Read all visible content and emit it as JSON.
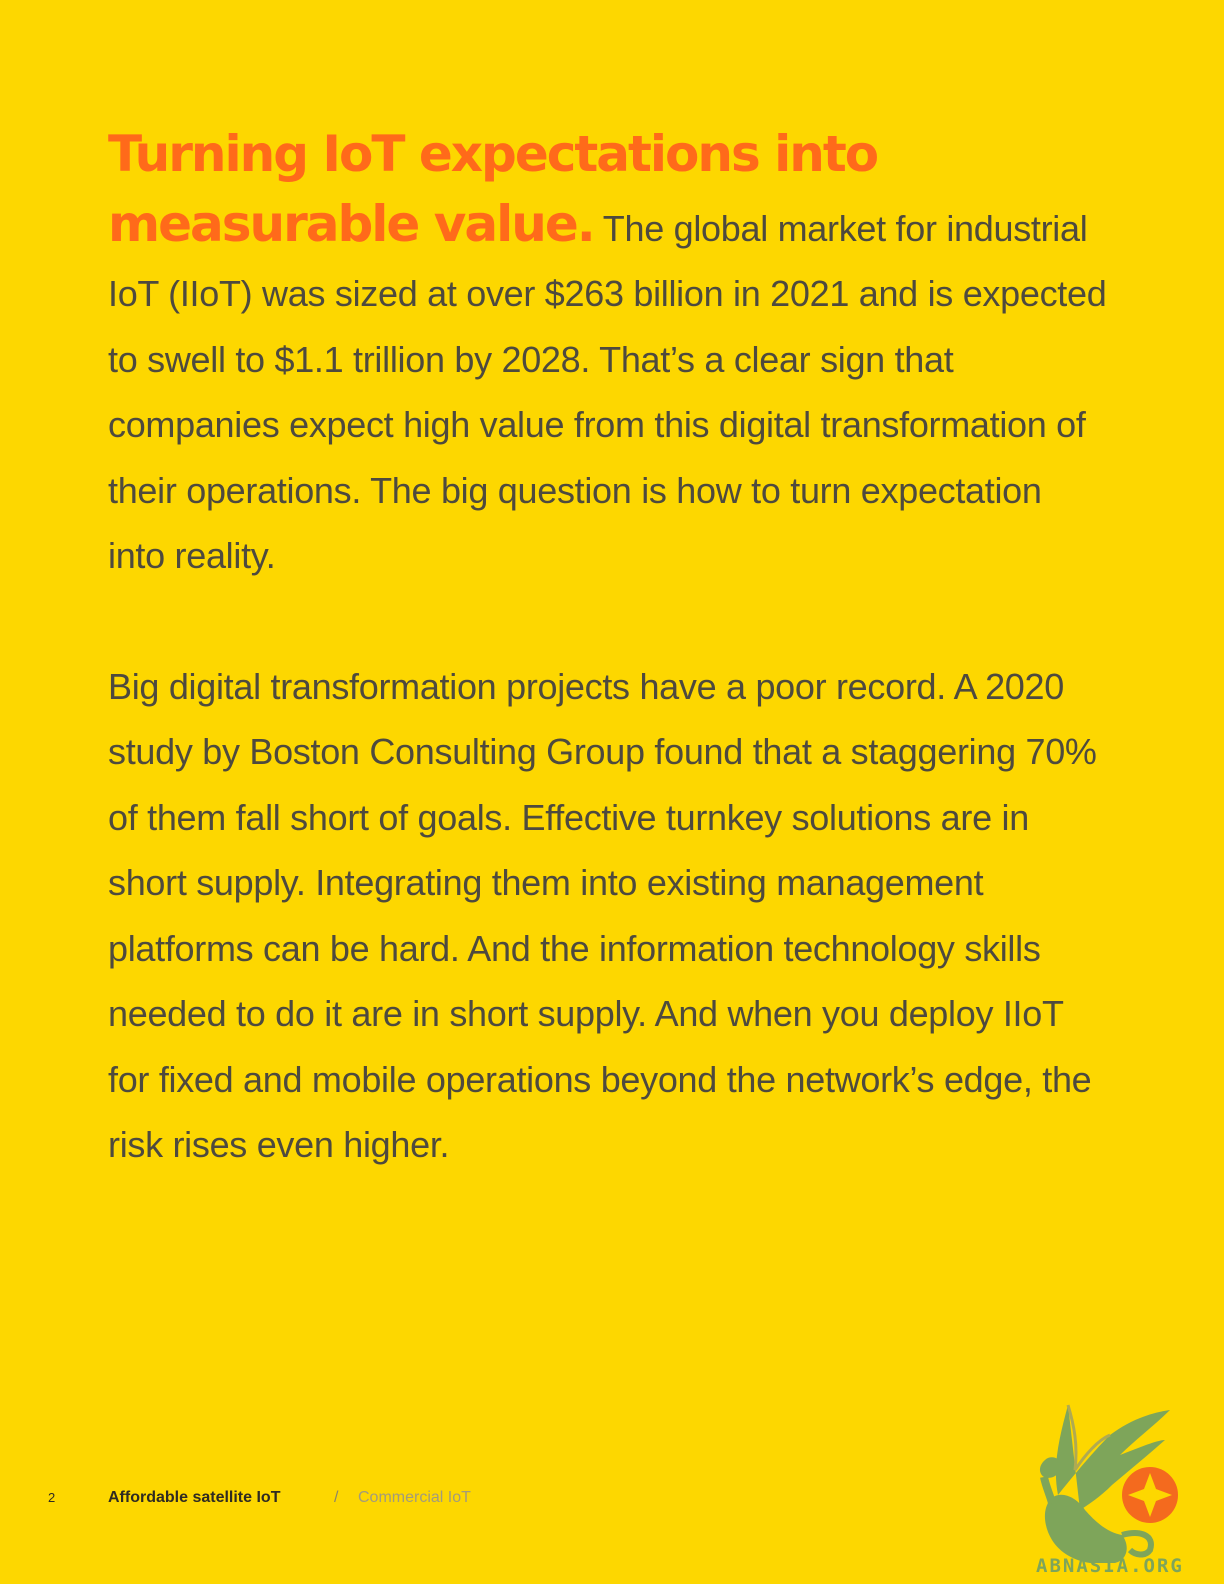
{
  "article": {
    "lead": "Turning IoT expectations into measurable value.",
    "para1_rest": "The global market for industrial IoT (IIoT) was sized at over $263 billion in 2021 and is expected to swell to $1.1 trillion by 2028. That’s a clear sign that companies expect high value from this digital transformation of their operations. The big question is how to turn expectation into reality.",
    "para2": "Big digital transformation projects have a poor record. A 2020 study by Boston Consulting Group found that a staggering 70% of them fall short of goals. Effective turnkey solutions are in short supply. Integrating them into existing management platforms can be hard. And the information technology skills needed to do it are in short supply. And when you deploy IIoT for fixed and mobile operations beyond the network’s edge, the risk rises even higher."
  },
  "footer": {
    "page_number": "2",
    "doc_title": "Affordable satellite IoT",
    "separator": "/",
    "section": "Commercial IoT"
  },
  "watermark": {
    "text": "ABNASIA.ORG"
  },
  "colors": {
    "background": "#FDD700",
    "heading": "#FF6A1A",
    "body_text": "#4E4A3E",
    "logo_green": "#7EA55A",
    "logo_orange": "#F46A1E"
  }
}
